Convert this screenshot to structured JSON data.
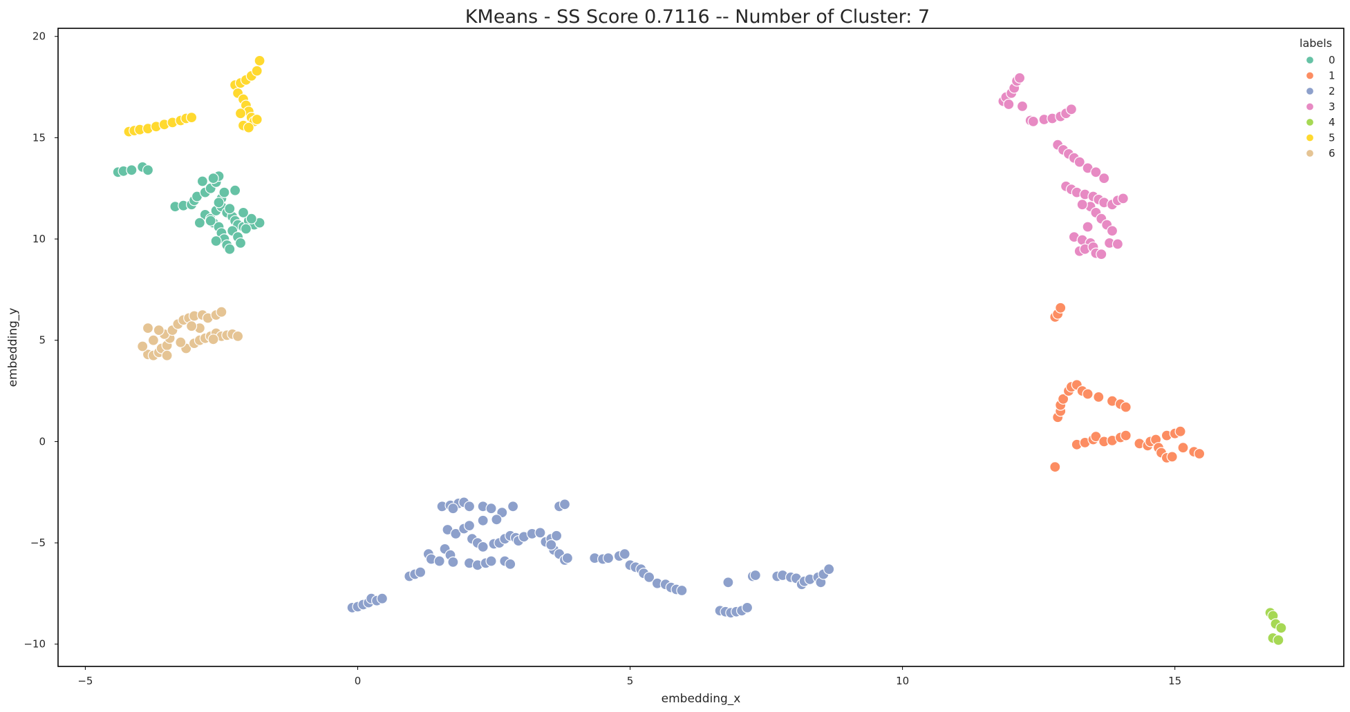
{
  "chart_data": {
    "type": "scatter",
    "title": "KMeans - SS Score 0.7116 -- Number of Cluster: 7",
    "xlabel": "embedding_x",
    "ylabel": "embedding_y",
    "xlim": [
      -5.5,
      18.1
    ],
    "ylim": [
      -11.1,
      20.4
    ],
    "xticks": [
      -5,
      0,
      5,
      10,
      15
    ],
    "yticks": [
      -10,
      -5,
      0,
      5,
      10,
      15,
      20
    ],
    "xtick_labels": [
      "−5",
      "0",
      "5",
      "10",
      "15"
    ],
    "ytick_labels": [
      "−10",
      "−5",
      "0",
      "5",
      "10",
      "15",
      "20"
    ],
    "grid": false,
    "legend": {
      "title": "labels",
      "placement": "top-right"
    },
    "series": [
      {
        "name": "0",
        "color": "#66c2a5",
        "points": [
          [
            -4.4,
            13.3
          ],
          [
            -4.3,
            13.35
          ],
          [
            -4.15,
            13.4
          ],
          [
            -3.95,
            13.55
          ],
          [
            -3.85,
            13.4
          ],
          [
            -3.35,
            11.6
          ],
          [
            -3.2,
            11.65
          ],
          [
            -3.05,
            11.7
          ],
          [
            -3.0,
            11.9
          ],
          [
            -2.95,
            12.1
          ],
          [
            -2.8,
            12.3
          ],
          [
            -2.7,
            12.5
          ],
          [
            -2.6,
            12.8
          ],
          [
            -2.55,
            13.1
          ],
          [
            -2.85,
            12.85
          ],
          [
            -2.65,
            13.0
          ],
          [
            -2.8,
            11.2
          ],
          [
            -2.7,
            11.0
          ],
          [
            -2.65,
            10.8
          ],
          [
            -2.55,
            10.6
          ],
          [
            -2.5,
            10.3
          ],
          [
            -2.45,
            10.0
          ],
          [
            -2.4,
            9.7
          ],
          [
            -2.35,
            9.5
          ],
          [
            -2.6,
            11.4
          ],
          [
            -2.5,
            11.6
          ],
          [
            -2.4,
            11.3
          ],
          [
            -2.3,
            11.1
          ],
          [
            -2.25,
            10.9
          ],
          [
            -2.2,
            10.7
          ],
          [
            -2.1,
            10.6
          ],
          [
            -2.0,
            10.9
          ],
          [
            -1.9,
            10.7
          ],
          [
            -1.8,
            10.8
          ],
          [
            -2.3,
            10.4
          ],
          [
            -2.2,
            10.1
          ],
          [
            -2.15,
            9.8
          ],
          [
            -2.5,
            12.0
          ],
          [
            -2.45,
            12.3
          ],
          [
            -2.7,
            10.9
          ],
          [
            -2.9,
            10.8
          ],
          [
            -2.35,
            11.5
          ],
          [
            -2.05,
            10.5
          ],
          [
            -1.95,
            11.0
          ],
          [
            -2.6,
            9.9
          ],
          [
            -2.25,
            12.4
          ],
          [
            -2.1,
            11.3
          ],
          [
            -2.55,
            11.8
          ]
        ]
      },
      {
        "name": "1",
        "color": "#fc8d62",
        "points": [
          [
            12.8,
            6.15
          ],
          [
            12.85,
            6.3
          ],
          [
            12.9,
            6.6
          ],
          [
            12.8,
            -1.25
          ],
          [
            12.85,
            1.2
          ],
          [
            12.9,
            1.5
          ],
          [
            12.9,
            1.8
          ],
          [
            12.95,
            2.1
          ],
          [
            13.05,
            2.5
          ],
          [
            13.1,
            2.7
          ],
          [
            13.2,
            2.8
          ],
          [
            13.3,
            2.5
          ],
          [
            13.4,
            2.35
          ],
          [
            13.6,
            2.2
          ],
          [
            13.85,
            2.0
          ],
          [
            14.0,
            1.85
          ],
          [
            14.1,
            1.7
          ],
          [
            13.2,
            -0.15
          ],
          [
            13.35,
            -0.05
          ],
          [
            13.5,
            0.1
          ],
          [
            13.55,
            0.25
          ],
          [
            13.7,
            0.0
          ],
          [
            13.85,
            0.05
          ],
          [
            14.0,
            0.2
          ],
          [
            14.1,
            0.3
          ],
          [
            14.35,
            -0.1
          ],
          [
            14.5,
            -0.2
          ],
          [
            14.55,
            0.0
          ],
          [
            14.65,
            0.1
          ],
          [
            14.7,
            -0.3
          ],
          [
            14.75,
            -0.55
          ],
          [
            14.85,
            -0.8
          ],
          [
            14.95,
            -0.75
          ],
          [
            14.85,
            0.3
          ],
          [
            15.0,
            0.4
          ],
          [
            15.1,
            0.5
          ],
          [
            15.15,
            -0.3
          ],
          [
            15.35,
            -0.5
          ],
          [
            15.45,
            -0.6
          ]
        ]
      },
      {
        "name": "2",
        "color": "#8da0cb",
        "points": [
          [
            -0.1,
            -8.2
          ],
          [
            0.0,
            -8.15
          ],
          [
            0.1,
            -8.05
          ],
          [
            0.2,
            -7.95
          ],
          [
            0.25,
            -7.75
          ],
          [
            0.35,
            -7.85
          ],
          [
            0.45,
            -7.75
          ],
          [
            0.95,
            -6.65
          ],
          [
            1.05,
            -6.55
          ],
          [
            1.15,
            -6.45
          ],
          [
            1.3,
            -5.55
          ],
          [
            1.35,
            -5.8
          ],
          [
            1.5,
            -5.9
          ],
          [
            1.6,
            -5.3
          ],
          [
            1.7,
            -5.6
          ],
          [
            1.75,
            -5.95
          ],
          [
            1.65,
            -4.35
          ],
          [
            1.8,
            -4.55
          ],
          [
            1.95,
            -4.3
          ],
          [
            2.05,
            -4.15
          ],
          [
            1.55,
            -3.2
          ],
          [
            1.7,
            -3.15
          ],
          [
            1.85,
            -3.05
          ],
          [
            1.95,
            -3.0
          ],
          [
            2.05,
            -3.2
          ],
          [
            1.75,
            -3.3
          ],
          [
            2.1,
            -4.8
          ],
          [
            2.2,
            -5.0
          ],
          [
            2.3,
            -5.2
          ],
          [
            2.05,
            -6.0
          ],
          [
            2.2,
            -6.1
          ],
          [
            2.35,
            -6.0
          ],
          [
            2.45,
            -5.9
          ],
          [
            2.5,
            -5.05
          ],
          [
            2.6,
            -5.0
          ],
          [
            2.7,
            -4.8
          ],
          [
            2.8,
            -4.65
          ],
          [
            2.9,
            -4.75
          ],
          [
            2.95,
            -4.9
          ],
          [
            2.3,
            -3.2
          ],
          [
            2.45,
            -3.3
          ],
          [
            2.65,
            -3.5
          ],
          [
            2.85,
            -3.2
          ],
          [
            2.3,
            -3.9
          ],
          [
            2.55,
            -3.85
          ],
          [
            2.7,
            -5.9
          ],
          [
            2.8,
            -6.05
          ],
          [
            3.05,
            -4.7
          ],
          [
            3.2,
            -4.55
          ],
          [
            3.35,
            -4.5
          ],
          [
            3.45,
            -4.95
          ],
          [
            3.55,
            -4.8
          ],
          [
            3.65,
            -4.65
          ],
          [
            3.6,
            -5.35
          ],
          [
            3.7,
            -5.55
          ],
          [
            3.8,
            -5.85
          ],
          [
            3.85,
            -5.75
          ],
          [
            3.7,
            -3.2
          ],
          [
            3.8,
            -3.1
          ],
          [
            3.55,
            -5.1
          ],
          [
            4.35,
            -5.75
          ],
          [
            4.5,
            -5.8
          ],
          [
            4.6,
            -5.75
          ],
          [
            4.8,
            -5.65
          ],
          [
            4.9,
            -5.55
          ],
          [
            5.0,
            -6.1
          ],
          [
            5.1,
            -6.2
          ],
          [
            5.2,
            -6.3
          ],
          [
            5.25,
            -6.5
          ],
          [
            5.35,
            -6.7
          ],
          [
            5.5,
            -7.0
          ],
          [
            5.65,
            -7.05
          ],
          [
            5.75,
            -7.2
          ],
          [
            5.85,
            -7.3
          ],
          [
            5.95,
            -7.35
          ],
          [
            6.65,
            -8.35
          ],
          [
            6.75,
            -8.4
          ],
          [
            6.85,
            -8.45
          ],
          [
            6.95,
            -8.4
          ],
          [
            7.05,
            -8.35
          ],
          [
            7.15,
            -8.2
          ],
          [
            6.8,
            -6.95
          ],
          [
            7.25,
            -6.65
          ],
          [
            7.3,
            -6.6
          ],
          [
            7.7,
            -6.65
          ],
          [
            7.8,
            -6.6
          ],
          [
            7.95,
            -6.7
          ],
          [
            8.05,
            -6.75
          ],
          [
            8.15,
            -7.05
          ],
          [
            8.2,
            -6.9
          ],
          [
            8.3,
            -6.8
          ],
          [
            8.45,
            -6.7
          ],
          [
            8.5,
            -6.95
          ],
          [
            8.55,
            -6.55
          ],
          [
            8.65,
            -6.3
          ]
        ]
      },
      {
        "name": "3",
        "color": "#e78ac3",
        "points": [
          [
            11.85,
            16.8
          ],
          [
            11.9,
            17.0
          ],
          [
            11.95,
            16.65
          ],
          [
            12.0,
            17.2
          ],
          [
            12.05,
            17.45
          ],
          [
            12.1,
            17.8
          ],
          [
            12.15,
            17.95
          ],
          [
            12.2,
            16.55
          ],
          [
            12.35,
            15.85
          ],
          [
            12.4,
            15.8
          ],
          [
            12.6,
            15.9
          ],
          [
            12.75,
            15.95
          ],
          [
            12.9,
            16.05
          ],
          [
            13.0,
            16.2
          ],
          [
            13.1,
            16.4
          ],
          [
            12.85,
            14.65
          ],
          [
            12.95,
            14.4
          ],
          [
            13.05,
            14.2
          ],
          [
            13.15,
            14.0
          ],
          [
            13.25,
            13.8
          ],
          [
            13.4,
            13.5
          ],
          [
            13.55,
            13.3
          ],
          [
            13.7,
            13.0
          ],
          [
            13.0,
            12.6
          ],
          [
            13.1,
            12.45
          ],
          [
            13.2,
            12.3
          ],
          [
            13.35,
            12.2
          ],
          [
            13.5,
            12.1
          ],
          [
            13.6,
            11.95
          ],
          [
            13.7,
            11.8
          ],
          [
            13.85,
            11.7
          ],
          [
            13.95,
            11.9
          ],
          [
            14.05,
            12.0
          ],
          [
            13.45,
            11.6
          ],
          [
            13.55,
            11.3
          ],
          [
            13.65,
            11.0
          ],
          [
            13.75,
            10.7
          ],
          [
            13.85,
            10.4
          ],
          [
            13.15,
            10.1
          ],
          [
            13.3,
            9.95
          ],
          [
            13.45,
            9.8
          ],
          [
            13.25,
            9.4
          ],
          [
            13.35,
            9.5
          ],
          [
            13.5,
            9.6
          ],
          [
            13.55,
            9.3
          ],
          [
            13.65,
            9.25
          ],
          [
            13.8,
            9.8
          ],
          [
            13.95,
            9.75
          ],
          [
            13.4,
            10.6
          ],
          [
            13.3,
            11.7
          ]
        ]
      },
      {
        "name": "4",
        "color": "#a6d854",
        "points": [
          [
            16.75,
            -8.45
          ],
          [
            16.8,
            -8.6
          ],
          [
            16.85,
            -9.0
          ],
          [
            16.8,
            -9.7
          ],
          [
            16.9,
            -9.8
          ],
          [
            16.95,
            -9.2
          ]
        ]
      },
      {
        "name": "5",
        "color": "#ffd92f",
        "points": [
          [
            -4.2,
            15.3
          ],
          [
            -4.1,
            15.35
          ],
          [
            -4.0,
            15.4
          ],
          [
            -3.85,
            15.45
          ],
          [
            -3.7,
            15.55
          ],
          [
            -3.55,
            15.65
          ],
          [
            -3.4,
            15.75
          ],
          [
            -3.25,
            15.85
          ],
          [
            -3.15,
            15.95
          ],
          [
            -3.05,
            16.0
          ],
          [
            -2.25,
            17.6
          ],
          [
            -2.15,
            17.7
          ],
          [
            -2.05,
            17.85
          ],
          [
            -1.95,
            18.05
          ],
          [
            -1.85,
            18.3
          ],
          [
            -1.8,
            18.8
          ],
          [
            -2.2,
            17.2
          ],
          [
            -2.1,
            16.9
          ],
          [
            -2.05,
            16.6
          ],
          [
            -2.0,
            16.3
          ],
          [
            -1.95,
            16.0
          ],
          [
            -1.9,
            15.8
          ],
          [
            -2.1,
            15.6
          ],
          [
            -2.0,
            15.5
          ],
          [
            -1.85,
            15.9
          ],
          [
            -2.15,
            16.2
          ]
        ]
      },
      {
        "name": "6",
        "color": "#e5c494",
        "points": [
          [
            -3.85,
            4.3
          ],
          [
            -3.75,
            4.25
          ],
          [
            -3.65,
            4.4
          ],
          [
            -3.6,
            4.6
          ],
          [
            -3.5,
            4.75
          ],
          [
            -3.45,
            5.1
          ],
          [
            -3.55,
            5.3
          ],
          [
            -3.65,
            5.5
          ],
          [
            -3.75,
            5.0
          ],
          [
            -3.95,
            4.7
          ],
          [
            -3.4,
            5.5
          ],
          [
            -3.3,
            5.8
          ],
          [
            -3.2,
            6.0
          ],
          [
            -3.1,
            6.1
          ],
          [
            -3.0,
            6.2
          ],
          [
            -2.85,
            6.25
          ],
          [
            -2.75,
            6.1
          ],
          [
            -2.6,
            6.25
          ],
          [
            -2.5,
            6.4
          ],
          [
            -3.15,
            4.6
          ],
          [
            -3.0,
            4.85
          ],
          [
            -2.9,
            5.0
          ],
          [
            -2.8,
            5.1
          ],
          [
            -2.7,
            5.2
          ],
          [
            -2.6,
            5.35
          ],
          [
            -2.5,
            5.2
          ],
          [
            -2.4,
            5.25
          ],
          [
            -2.3,
            5.3
          ],
          [
            -2.2,
            5.2
          ],
          [
            -2.9,
            5.6
          ],
          [
            -3.85,
            5.6
          ],
          [
            -3.5,
            4.25
          ],
          [
            -3.05,
            5.7
          ],
          [
            -2.65,
            5.05
          ],
          [
            -3.25,
            4.9
          ]
        ]
      }
    ]
  }
}
